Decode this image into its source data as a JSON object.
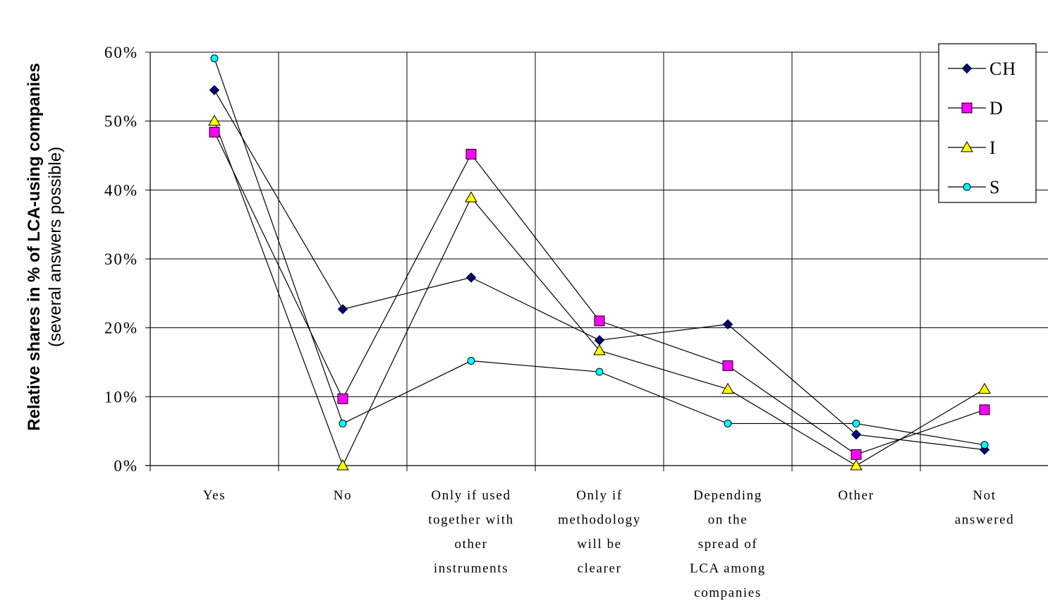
{
  "chart_data": {
    "type": "line",
    "title": "",
    "ylabel": "Relative shares in % of LCA-using companies",
    "ylabel_sub": "(several answers possible)",
    "xlabel": "",
    "ylim": [
      0,
      60
    ],
    "y_ticks": [
      0,
      10,
      20,
      30,
      40,
      50,
      60
    ],
    "y_tick_labels": [
      "0%",
      "10%",
      "20%",
      "30%",
      "40%",
      "50%",
      "60%"
    ],
    "grid": "major, both axes",
    "legend_position": "top-right",
    "categories": [
      [
        "Yes"
      ],
      [
        "No"
      ],
      [
        "Only if used",
        "together with",
        "other",
        "instruments"
      ],
      [
        "Only if",
        "methodology",
        "will be",
        "clearer"
      ],
      [
        "Depending",
        "on the",
        "spread of",
        "LCA among",
        "companies"
      ],
      [
        "Other"
      ],
      [
        "Not",
        "answered"
      ]
    ],
    "series": [
      {
        "name": "CH",
        "marker": "diamond",
        "color": "#000080",
        "values": [
          54.5,
          22.7,
          27.3,
          18.2,
          20.5,
          4.5,
          2.3
        ]
      },
      {
        "name": "D",
        "marker": "square",
        "color": "#FF00FF",
        "values": [
          48.4,
          9.7,
          45.2,
          21.0,
          14.5,
          1.6,
          8.1
        ]
      },
      {
        "name": "I",
        "marker": "triangle",
        "color": "#FFFF00",
        "values": [
          50.0,
          0.0,
          38.9,
          16.7,
          11.1,
          0.0,
          11.1
        ]
      },
      {
        "name": "S",
        "marker": "circle",
        "color": "#00FFFF",
        "values": [
          59.1,
          6.1,
          15.2,
          13.6,
          6.1,
          6.1,
          3.0
        ]
      }
    ]
  }
}
